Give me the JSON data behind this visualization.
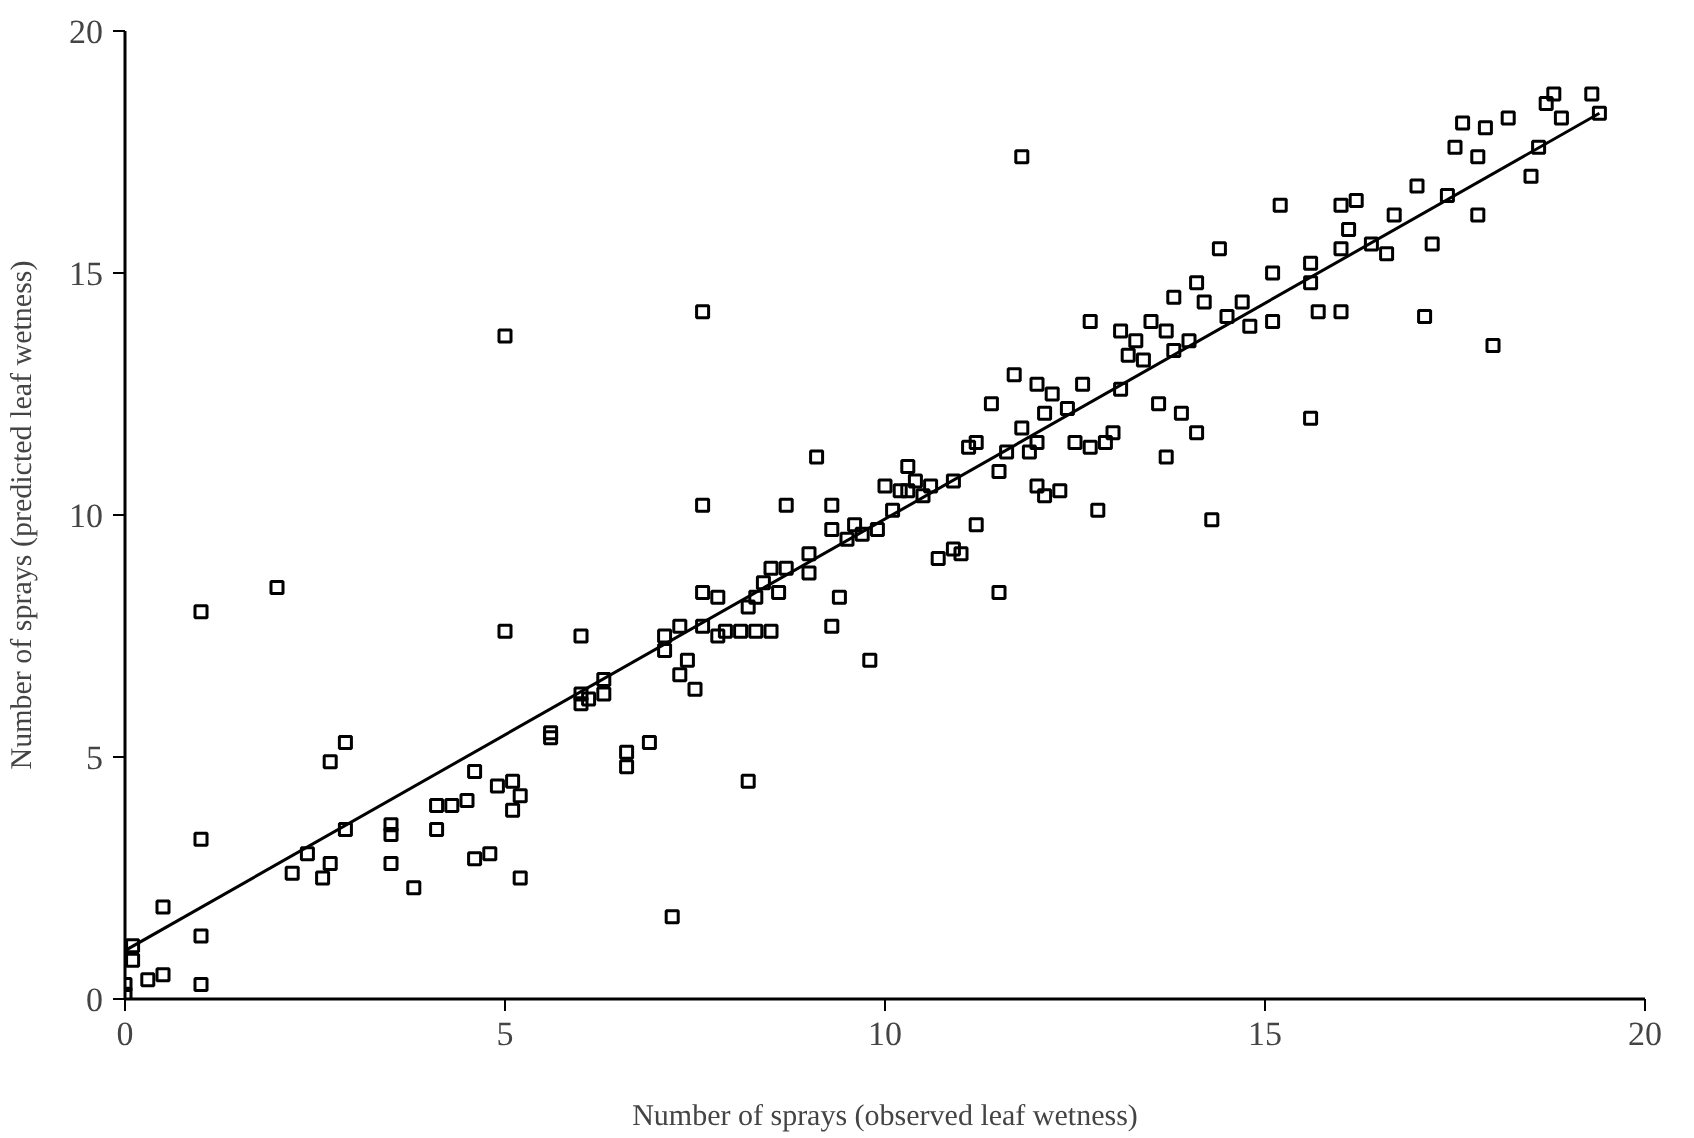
{
  "chart_data": {
    "type": "scatter",
    "xlabel": "Number of sprays (observed leaf wetness)",
    "ylabel": "Number of sprays (predicted leaf wetness)",
    "xlim": [
      0,
      20
    ],
    "ylim": [
      0,
      20
    ],
    "xticks": [
      0,
      5,
      10,
      15,
      20
    ],
    "yticks": [
      0,
      5,
      10,
      15,
      20
    ],
    "grid": false,
    "marker": "square",
    "series": [
      {
        "color": "#000000",
        "x": [
          0,
          0,
          0.1,
          0.1,
          0.3,
          0.5,
          0.5,
          1,
          1,
          1,
          1,
          2,
          2.2,
          2.4,
          2.6,
          2.7,
          2.7,
          2.9,
          2.9,
          3.5,
          3.5,
          3.5,
          3.8,
          4.1,
          4.1,
          4.3,
          4.5,
          4.6,
          4.6,
          4.8,
          4.9,
          5,
          5,
          5.1,
          5.1,
          5.2,
          5.2,
          5.6,
          5.6,
          6,
          6,
          6,
          6.1,
          6.3,
          6.3,
          6.6,
          6.6,
          6.9,
          7.1,
          7.1,
          7.2,
          7.3,
          7.3,
          7.4,
          7.5,
          7.6,
          7.6,
          7.6,
          7.6,
          7.8,
          7.8,
          7.9,
          8.1,
          8.2,
          8.2,
          8.3,
          8.3,
          8.4,
          8.5,
          8.5,
          8.6,
          8.7,
          8.7,
          9,
          9,
          9.1,
          9.3,
          9.3,
          9.3,
          9.4,
          9.5,
          9.6,
          9.7,
          9.8,
          9.9,
          10,
          10.1,
          10.2,
          10.3,
          10.3,
          10.4,
          10.5,
          10.6,
          10.7,
          10.9,
          10.9,
          11,
          11.1,
          11.2,
          11.2,
          11.4,
          11.5,
          11.5,
          11.6,
          11.7,
          11.8,
          11.8,
          11.9,
          12,
          12,
          12,
          12.1,
          12.1,
          12.2,
          12.3,
          12.4,
          12.5,
          12.6,
          12.7,
          12.7,
          12.8,
          12.9,
          13,
          13.1,
          13.1,
          13.2,
          13.3,
          13.4,
          13.5,
          13.6,
          13.7,
          13.7,
          13.8,
          13.8,
          13.9,
          14,
          14.1,
          14.1,
          14.2,
          14.3,
          14.4,
          14.5,
          14.7,
          14.8,
          15.1,
          15.1,
          15.2,
          15.6,
          15.6,
          15.6,
          15.7,
          16,
          16,
          16,
          16.1,
          16.2,
          16.4,
          16.6,
          16.7,
          17,
          17.1,
          17.2,
          17.4,
          17.5,
          17.6,
          17.8,
          17.8,
          17.9,
          18,
          18.2,
          18.5,
          18.6,
          18.7,
          18.8,
          18.9,
          19.3,
          19.4
        ],
        "values": [
          0.1,
          0.3,
          0.8,
          1.1,
          0.4,
          0.5,
          1.9,
          0.3,
          1.3,
          3.3,
          8,
          8.5,
          2.6,
          3,
          2.5,
          2.8,
          4.9,
          5.3,
          3.5,
          3.6,
          3.4,
          2.8,
          2.3,
          3.5,
          4,
          4,
          4.1,
          4.7,
          2.9,
          3,
          4.4,
          7.6,
          13.7,
          4.5,
          3.9,
          4.2,
          2.5,
          5.4,
          5.5,
          6.1,
          6.3,
          7.5,
          6.2,
          6.3,
          6.6,
          5.1,
          4.8,
          5.3,
          7.2,
          7.5,
          1.7,
          6.7,
          7.7,
          7,
          6.4,
          7.7,
          8.4,
          10.2,
          14.2,
          7.5,
          8.3,
          7.6,
          7.6,
          8.1,
          4.5,
          7.6,
          8.3,
          8.6,
          8.9,
          7.6,
          8.4,
          10.2,
          8.9,
          9.2,
          8.8,
          11.2,
          9.7,
          10.2,
          7.7,
          8.3,
          9.5,
          9.8,
          9.6,
          7,
          9.7,
          10.6,
          10.1,
          10.5,
          10.5,
          11,
          10.7,
          10.4,
          10.6,
          9.1,
          10.7,
          9.3,
          9.2,
          11.4,
          9.8,
          11.5,
          12.3,
          10.9,
          8.4,
          11.3,
          12.9,
          17.4,
          11.8,
          11.3,
          10.6,
          11.5,
          12.7,
          10.4,
          12.1,
          12.5,
          10.5,
          12.2,
          11.5,
          12.7,
          11.4,
          14,
          10.1,
          11.5,
          11.7,
          13.8,
          12.6,
          13.3,
          13.6,
          13.2,
          14,
          12.3,
          11.2,
          13.8,
          13.4,
          14.5,
          12.1,
          13.6,
          14.8,
          11.7,
          14.4,
          9.9,
          15.5,
          14.1,
          14.4,
          13.9,
          15,
          14,
          16.4,
          14.8,
          15.2,
          12,
          14.2,
          14.2,
          15.5,
          16.4,
          15.9,
          16.5,
          15.6,
          15.4,
          16.2,
          16.8,
          14.1,
          15.6,
          16.6,
          17.6,
          18.1,
          17.4,
          16.2,
          18,
          13.5,
          18.2,
          17,
          17.6,
          18.5,
          18.7,
          18.2,
          18.7,
          18.3
        ]
      },
      {
        "type": "line",
        "color": "#000000",
        "marker": "none",
        "x": [
          0,
          19.4
        ],
        "values": [
          1.0,
          18.3
        ]
      }
    ]
  }
}
